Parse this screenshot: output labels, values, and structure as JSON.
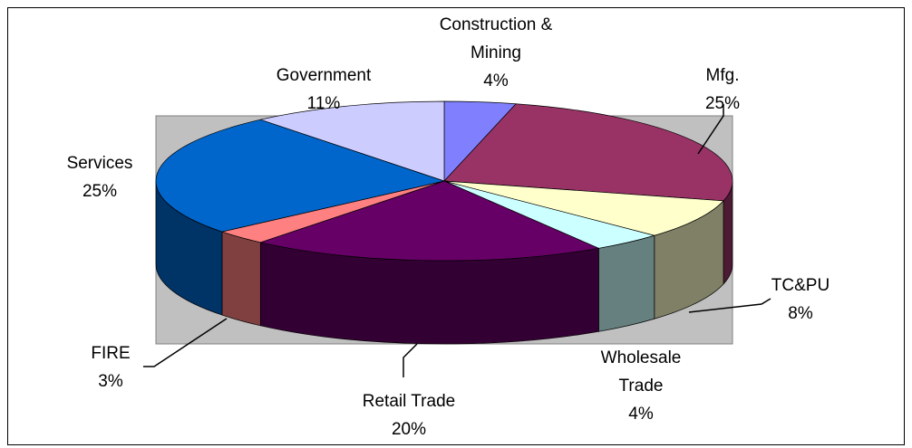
{
  "chart_data": {
    "type": "pie",
    "categories": [
      "Construction & Mining",
      "Mfg.",
      "TC&PU",
      "Wholesale Trade",
      "Retail Trade",
      "FIRE",
      "Services",
      "Government"
    ],
    "values": [
      4,
      25,
      8,
      4,
      20,
      3,
      25,
      11
    ],
    "value_labels": [
      "4%",
      "25%",
      "8%",
      "4%",
      "20%",
      "3%",
      "25%",
      "11%"
    ],
    "colors": [
      "#8080ff",
      "#993366",
      "#ffffcc",
      "#ccffff",
      "#660066",
      "#ff8080",
      "#0066cc",
      "#ccccff"
    ]
  }
}
